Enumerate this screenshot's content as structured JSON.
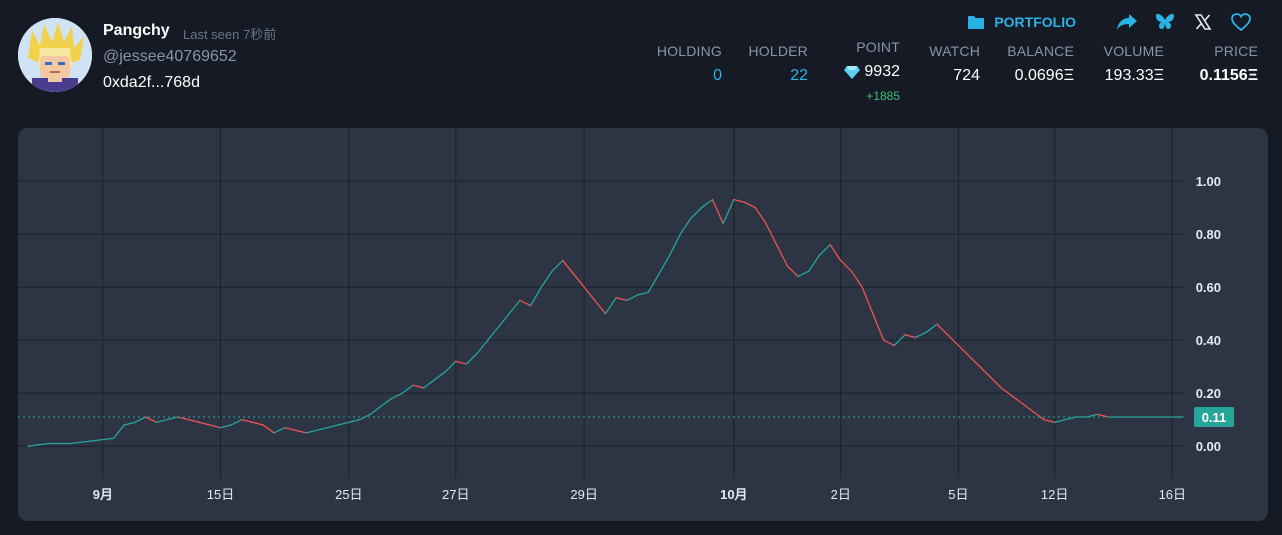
{
  "profile": {
    "name": "Pangchy",
    "last_seen": "Last seen 7秒前",
    "handle": "@jessee40769652",
    "address": "0xda2f...768d",
    "avatar_icon": "anime-avatar-icon"
  },
  "nav": {
    "portfolio_label": "PORTFOLIO",
    "icons": [
      "share-icon",
      "butterfly-icon",
      "x-icon",
      "heart-icon"
    ],
    "accent_color": "#2bb3e6"
  },
  "stats": {
    "holding_label": "HOLDING",
    "holding_value": "0",
    "holder_label": "HOLDER",
    "holder_value": "22",
    "point_label": "POINT",
    "point_value": "9932",
    "point_gain": "+1885",
    "watch_label": "WATCH",
    "watch_value": "724",
    "balance_label": "BALANCE",
    "balance_value": "0.0696Ξ",
    "volume_label": "VOLUME",
    "volume_value": "193.33Ξ",
    "price_label": "PRICE",
    "price_value": "0.1156Ξ"
  },
  "chart_data": {
    "type": "line",
    "up_color": "#26a69a",
    "down_color": "#ef5350",
    "current_value": 0.11,
    "current_label": "0.11",
    "grid": true,
    "ylim": [
      -0.12,
      1.2
    ],
    "y_ticks": [
      0,
      0.2,
      0.4,
      0.6,
      0.8,
      1.0
    ],
    "y_tick_labels": [
      "0.00",
      "0.20",
      "0.40",
      "0.60",
      "0.80",
      "1.00"
    ],
    "x_ticks": [
      {
        "label": "9月",
        "bold": true,
        "t": 7
      },
      {
        "label": "15日",
        "bold": false,
        "t": 18
      },
      {
        "label": "25日",
        "bold": false,
        "t": 30
      },
      {
        "label": "27日",
        "bold": false,
        "t": 40
      },
      {
        "label": "29日",
        "bold": false,
        "t": 52
      },
      {
        "label": "10月",
        "bold": true,
        "t": 66
      },
      {
        "label": "2日",
        "bold": false,
        "t": 76
      },
      {
        "label": "5日",
        "bold": false,
        "t": 87
      },
      {
        "label": "12日",
        "bold": false,
        "t": 96
      },
      {
        "label": "16日",
        "bold": false,
        "t": 107
      }
    ],
    "series": [
      {
        "x": [
          0,
          2,
          4,
          6,
          8,
          9,
          10,
          11,
          12,
          13,
          14,
          15,
          16,
          17,
          18,
          19,
          20,
          21,
          22,
          23,
          24,
          25,
          26,
          27,
          28,
          29,
          30,
          31,
          32,
          33,
          34,
          35,
          36,
          37,
          38,
          39,
          40,
          41,
          42,
          43,
          44,
          45,
          46,
          47,
          48,
          49,
          50,
          51,
          52,
          53,
          54,
          55,
          56,
          57,
          58,
          59,
          60,
          61,
          62,
          63,
          64,
          65,
          66,
          67,
          68,
          69,
          70,
          71,
          72,
          73,
          74,
          75,
          76,
          77,
          78,
          79,
          80,
          81,
          82,
          83,
          84,
          85,
          86,
          87,
          88,
          89,
          90,
          91,
          92,
          93,
          94,
          95,
          96,
          97,
          98,
          99,
          100,
          101,
          102,
          103,
          104,
          105,
          106,
          107,
          108
        ],
        "y": [
          0,
          0.01,
          0.01,
          0.02,
          0.03,
          0.08,
          0.09,
          0.11,
          0.09,
          0.1,
          0.11,
          0.1,
          0.09,
          0.08,
          0.07,
          0.08,
          0.1,
          0.09,
          0.08,
          0.05,
          0.07,
          0.06,
          0.05,
          0.06,
          0.07,
          0.08,
          0.09,
          0.1,
          0.12,
          0.15,
          0.18,
          0.2,
          0.23,
          0.22,
          0.25,
          0.28,
          0.32,
          0.31,
          0.35,
          0.4,
          0.45,
          0.5,
          0.55,
          0.53,
          0.6,
          0.66,
          0.7,
          0.65,
          0.6,
          0.55,
          0.5,
          0.56,
          0.55,
          0.57,
          0.58,
          0.65,
          0.72,
          0.8,
          0.86,
          0.9,
          0.93,
          0.84,
          0.93,
          0.92,
          0.9,
          0.84,
          0.76,
          0.68,
          0.64,
          0.66,
          0.72,
          0.76,
          0.7,
          0.66,
          0.6,
          0.5,
          0.4,
          0.38,
          0.42,
          0.41,
          0.43,
          0.46,
          0.42,
          0.38,
          0.34,
          0.3,
          0.26,
          0.22,
          0.19,
          0.16,
          0.13,
          0.1,
          0.09,
          0.1,
          0.11,
          0.11,
          0.12,
          0.11,
          0.11,
          0.11,
          0.11,
          0.11,
          0.11,
          0.11,
          0.11
        ]
      }
    ]
  }
}
